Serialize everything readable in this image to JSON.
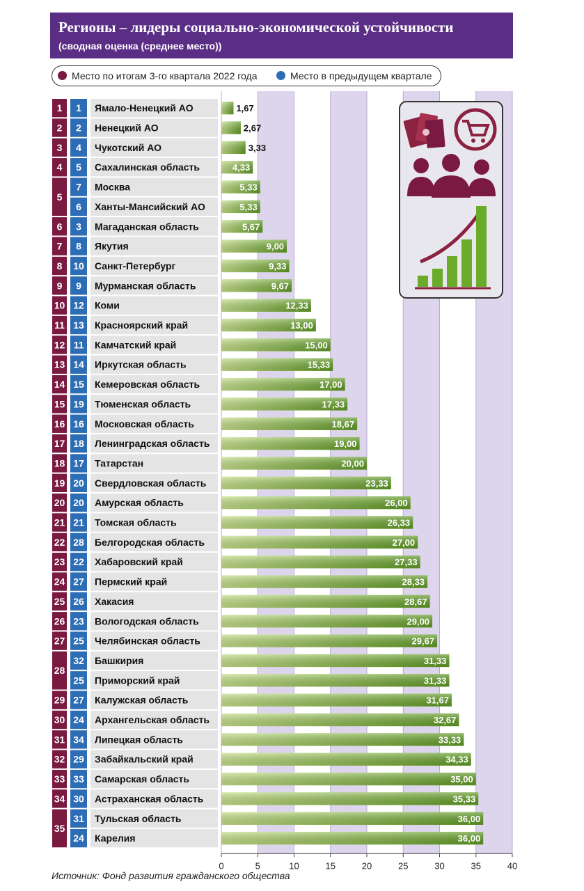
{
  "header": {
    "title": "Регионы – лидеры социально-экономической устойчивости",
    "subtitle": "(сводная оценка (среднее место))"
  },
  "legend": {
    "current_label": "Место по итогам 3-го квартала 2022 года",
    "previous_label": "Место в предыдущем квартале"
  },
  "source": "Источник: Фонд развития гражданского общества",
  "colors": {
    "current": "#7a1a40",
    "previous": "#2d6db5",
    "bar_light": "#c6e08a",
    "bar_dark": "#5e9a22",
    "band_light": "#ffffff",
    "band_dark": "#ddd5eb",
    "header": "#5b2e86"
  },
  "illustration_icons": [
    "money-icon",
    "shopping-cart-icon",
    "people-icon",
    "growth-chart-icon"
  ],
  "chart_data": {
    "type": "bar",
    "orientation": "horizontal",
    "xlim": [
      0,
      40
    ],
    "xticks": [
      0,
      5,
      10,
      15,
      20,
      25,
      30,
      35,
      40
    ],
    "rows": [
      {
        "region": "Ямало-Ненецкий АО",
        "current": "1",
        "previous": "1",
        "value": 1.67,
        "label": "1,67"
      },
      {
        "region": "Ненецкий АО",
        "current": "2",
        "previous": "2",
        "value": 2.67,
        "label": "2,67"
      },
      {
        "region": "Чукотский АО",
        "current": "3",
        "previous": "4",
        "value": 3.33,
        "label": "3,33"
      },
      {
        "region": "Сахалинская область",
        "current": "4",
        "previous": "5",
        "value": 4.33,
        "label": "4,33"
      },
      {
        "region": "Москва",
        "current": "5",
        "previous": "7",
        "value": 5.33,
        "label": "5,33"
      },
      {
        "region": "Ханты-Мансийский АО",
        "current": "5",
        "previous": "6",
        "value": 5.33,
        "label": "5,33"
      },
      {
        "region": "Магаданская область",
        "current": "6",
        "previous": "3",
        "value": 5.67,
        "label": "5,67"
      },
      {
        "region": "Якутия",
        "current": "7",
        "previous": "8",
        "value": 9.0,
        "label": "9,00"
      },
      {
        "region": "Санкт-Петербург",
        "current": "8",
        "previous": "10",
        "value": 9.33,
        "label": "9,33"
      },
      {
        "region": "Мурманская область",
        "current": "9",
        "previous": "9",
        "value": 9.67,
        "label": "9,67"
      },
      {
        "region": "Коми",
        "current": "10",
        "previous": "12",
        "value": 12.33,
        "label": "12,33"
      },
      {
        "region": "Красноярский край",
        "current": "11",
        "previous": "13",
        "value": 13.0,
        "label": "13,00"
      },
      {
        "region": "Камчатский край",
        "current": "12",
        "previous": "11",
        "value": 15.0,
        "label": "15,00"
      },
      {
        "region": "Иркутская область",
        "current": "13",
        "previous": "14",
        "value": 15.33,
        "label": "15,33"
      },
      {
        "region": "Кемеровская область",
        "current": "14",
        "previous": "15",
        "value": 17.0,
        "label": "17,00"
      },
      {
        "region": "Тюменская область",
        "current": "15",
        "previous": "19",
        "value": 17.33,
        "label": "17,33"
      },
      {
        "region": "Московская область",
        "current": "16",
        "previous": "16",
        "value": 18.67,
        "label": "18,67"
      },
      {
        "region": "Ленинградская область",
        "current": "17",
        "previous": "18",
        "value": 19.0,
        "label": "19,00"
      },
      {
        "region": "Татарстан",
        "current": "18",
        "previous": "17",
        "value": 20.0,
        "label": "20,00"
      },
      {
        "region": "Свердловская область",
        "current": "19",
        "previous": "20",
        "value": 23.33,
        "label": "23,33"
      },
      {
        "region": "Амурская область",
        "current": "20",
        "previous": "20",
        "value": 26.0,
        "label": "26,00"
      },
      {
        "region": "Томская область",
        "current": "21",
        "previous": "21",
        "value": 26.33,
        "label": "26,33"
      },
      {
        "region": "Белгородская область",
        "current": "22",
        "previous": "28",
        "value": 27.0,
        "label": "27,00"
      },
      {
        "region": "Хабаровский край",
        "current": "23",
        "previous": "22",
        "value": 27.33,
        "label": "27,33"
      },
      {
        "region": "Пермский край",
        "current": "24",
        "previous": "27",
        "value": 28.33,
        "label": "28,33"
      },
      {
        "region": "Хакасия",
        "current": "25",
        "previous": "26",
        "value": 28.67,
        "label": "28,67"
      },
      {
        "region": "Вологодская область",
        "current": "26",
        "previous": "23",
        "value": 29.0,
        "label": "29,00"
      },
      {
        "region": "Челябинская область",
        "current": "27",
        "previous": "25",
        "value": 29.67,
        "label": "29,67"
      },
      {
        "region": "Башкирия",
        "current": "28",
        "previous": "32",
        "value": 31.33,
        "label": "31,33"
      },
      {
        "region": "Приморский край",
        "current": "28",
        "previous": "25",
        "value": 31.33,
        "label": "31,33"
      },
      {
        "region": "Калужская область",
        "current": "29",
        "previous": "27",
        "value": 31.67,
        "label": "31,67"
      },
      {
        "region": "Архангельская область",
        "current": "30",
        "previous": "24",
        "value": 32.67,
        "label": "32,67"
      },
      {
        "region": "Липецкая область",
        "current": "31",
        "previous": "34",
        "value": 33.33,
        "label": "33,33"
      },
      {
        "region": "Забайкальский край",
        "current": "32",
        "previous": "29",
        "value": 34.33,
        "label": "34,33"
      },
      {
        "region": "Самарская область",
        "current": "33",
        "previous": "33",
        "value": 35.0,
        "label": "35,00"
      },
      {
        "region": "Астраханская область",
        "current": "34",
        "previous": "30",
        "value": 35.33,
        "label": "35,33"
      },
      {
        "region": "Тульская область",
        "current": "35",
        "previous": "31",
        "value": 36.0,
        "label": "36,00"
      },
      {
        "region": "Карелия",
        "current": "35",
        "previous": "24",
        "value": 36.0,
        "label": "36,00"
      }
    ]
  }
}
